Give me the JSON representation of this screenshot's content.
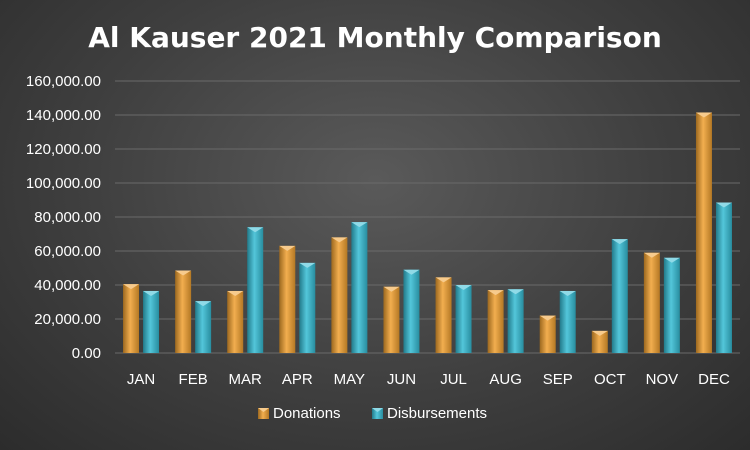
{
  "colors": {
    "background": "#3f3f3f",
    "gridline": "#6a6a6a",
    "text": "#ffffff",
    "donations": "#f0a030",
    "disbursements": "#35bcd4"
  },
  "chart_data": {
    "type": "bar",
    "title": "Al Kauser 2021 Monthly Comparison",
    "xlabel": "",
    "ylabel": "",
    "categories": [
      "JAN",
      "FEB",
      "MAR",
      "APR",
      "MAY",
      "JUN",
      "JUL",
      "AUG",
      "SEP",
      "OCT",
      "NOV",
      "DEC"
    ],
    "series": [
      {
        "name": "Donations",
        "color": "#f0a030",
        "values": [
          40500,
          48500,
          36500,
          63000,
          68000,
          39000,
          44500,
          37000,
          22000,
          13000,
          59000,
          141500
        ]
      },
      {
        "name": "Disbursements",
        "color": "#35bcd4",
        "values": [
          36500,
          30500,
          74000,
          53000,
          77000,
          49000,
          40000,
          37500,
          36500,
          67000,
          56000,
          88500
        ]
      }
    ],
    "ylim": [
      0,
      160000
    ],
    "yticks": [
      "0.00",
      "20,000.00",
      "40,000.00",
      "60,000.00",
      "80,000.00",
      "100,000.00",
      "120,000.00",
      "140,000.00",
      "160,000.00"
    ],
    "grid": true,
    "legend": "bottom-center"
  }
}
